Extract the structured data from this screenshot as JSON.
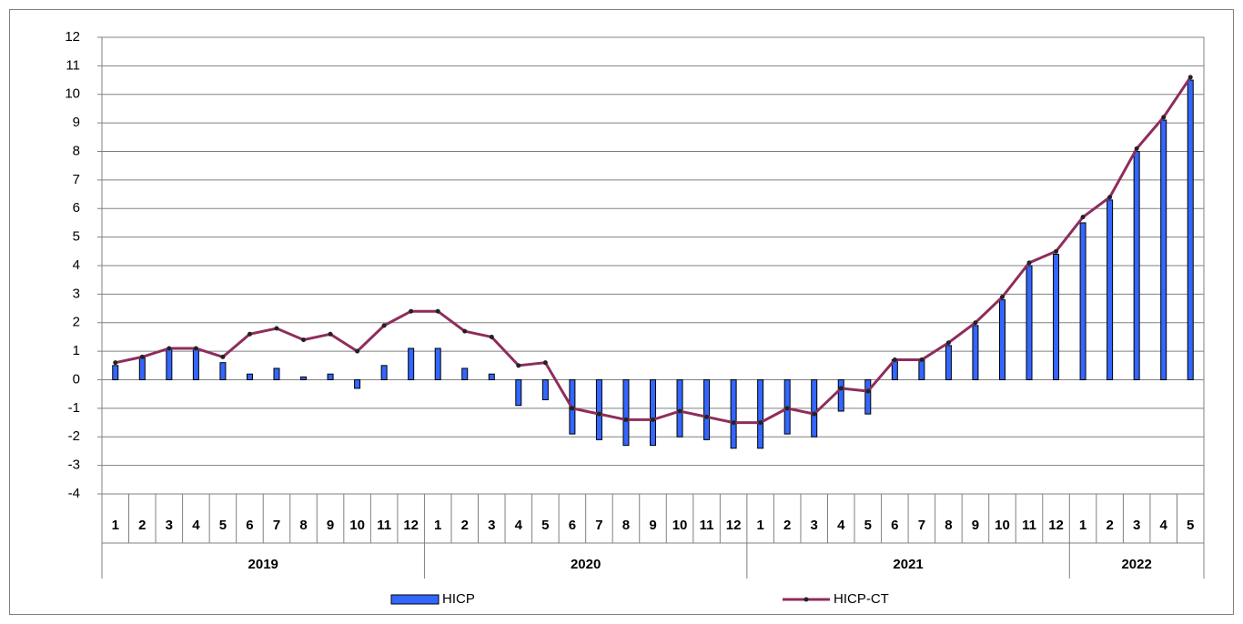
{
  "chart_data": {
    "type": "combo",
    "groups": [
      {
        "name": "2019",
        "categories": [
          "1",
          "2",
          "3",
          "4",
          "5",
          "6",
          "7",
          "8",
          "9",
          "10",
          "11",
          "12"
        ]
      },
      {
        "name": "2020",
        "categories": [
          "1",
          "2",
          "3",
          "4",
          "5",
          "6",
          "7",
          "8",
          "9",
          "10",
          "11",
          "12"
        ]
      },
      {
        "name": "2021",
        "categories": [
          "1",
          "2",
          "3",
          "4",
          "5",
          "6",
          "7",
          "8",
          "9",
          "10",
          "11",
          "12"
        ]
      },
      {
        "name": "2022",
        "categories": [
          "1",
          "2",
          "3",
          "4",
          "5"
        ]
      }
    ],
    "series": [
      {
        "name": "HICP",
        "type": "bar",
        "color": "#3366ff",
        "values": [
          0.5,
          0.8,
          1.1,
          1.1,
          0.6,
          0.2,
          0.4,
          0.1,
          0.2,
          -0.3,
          0.5,
          1.1,
          1.1,
          0.4,
          0.2,
          -0.9,
          -0.7,
          -1.9,
          -2.1,
          -2.3,
          -2.3,
          -2.0,
          -2.1,
          -2.4,
          -2.4,
          -1.9,
          -2.0,
          -1.1,
          -1.2,
          0.7,
          0.7,
          1.2,
          1.9,
          2.8,
          4.0,
          4.4,
          5.5,
          6.3,
          8.0,
          9.1,
          10.5
        ]
      },
      {
        "name": "HICP-CT",
        "type": "line",
        "color": "#8e2d5c",
        "values": [
          0.6,
          0.8,
          1.1,
          1.1,
          0.8,
          1.6,
          1.8,
          1.4,
          1.6,
          1.0,
          1.9,
          2.4,
          2.4,
          1.7,
          1.5,
          0.5,
          0.6,
          -1.0,
          -1.2,
          -1.4,
          -1.4,
          -1.1,
          -1.3,
          -1.5,
          -1.5,
          -1.0,
          -1.2,
          -0.3,
          -0.4,
          0.7,
          0.7,
          1.3,
          2.0,
          2.9,
          4.1,
          4.5,
          5.7,
          6.4,
          8.1,
          9.2,
          10.6
        ]
      }
    ],
    "ylim": [
      -4,
      12
    ],
    "yticks": [
      -4,
      -3,
      -2,
      -1,
      0,
      1,
      2,
      3,
      4,
      5,
      6,
      7,
      8,
      9,
      10,
      11,
      12
    ],
    "grid": true,
    "legend": "bottom"
  }
}
